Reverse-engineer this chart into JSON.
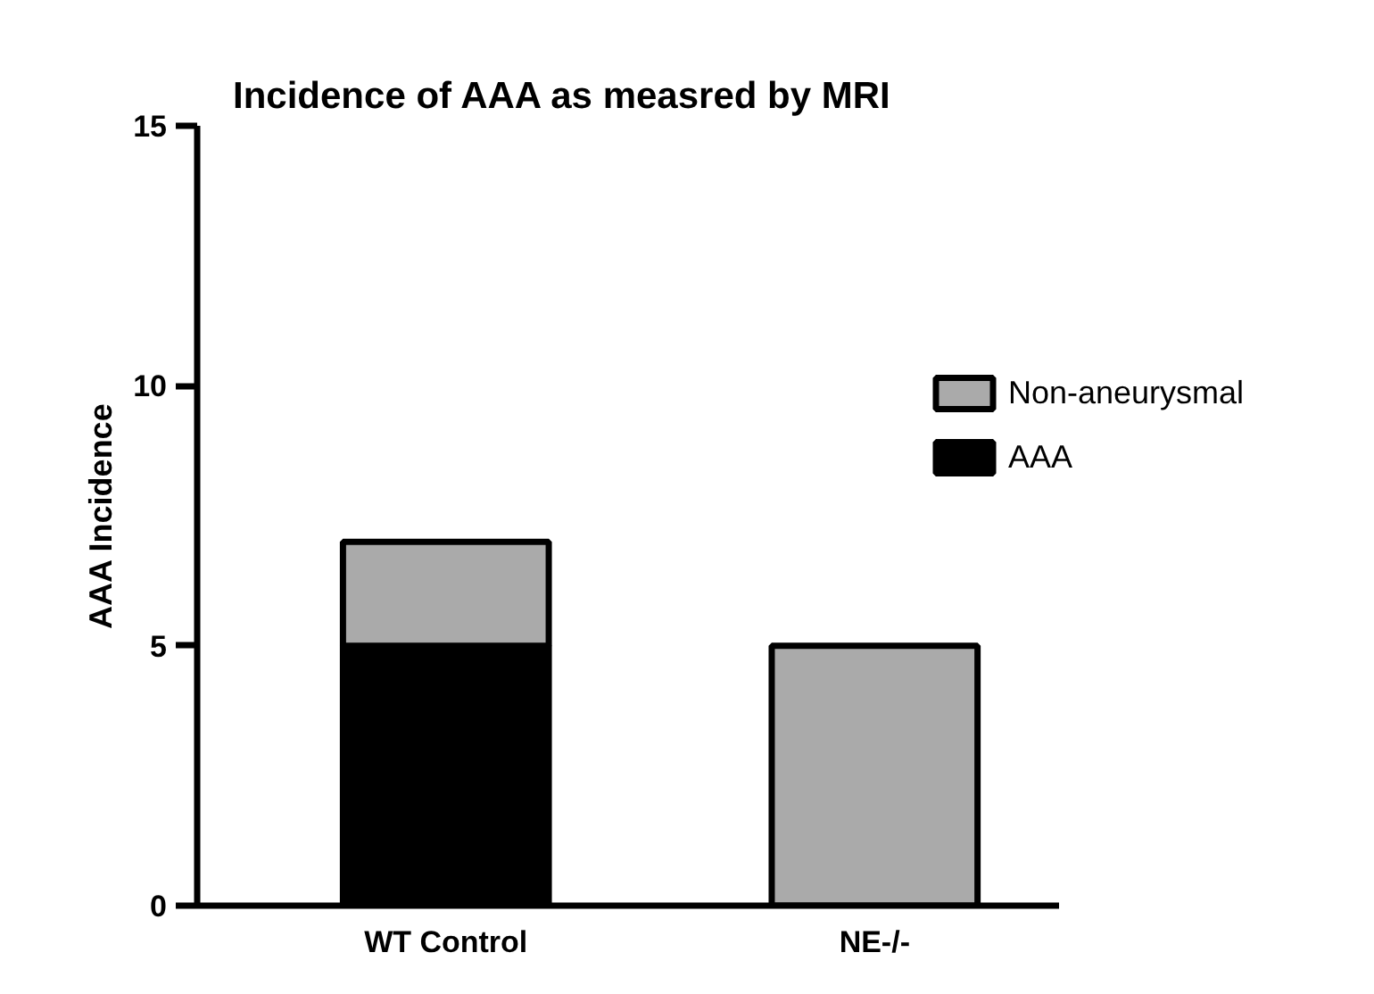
{
  "chart_data": {
    "type": "bar",
    "title": "Incidence of AAA as measred by MRI",
    "ylabel": "AAA Incidence",
    "categories": [
      "WT Control",
      "NE-/-"
    ],
    "stacked": true,
    "series": [
      {
        "name": "AAA",
        "color": "#000000",
        "values": [
          5,
          0
        ]
      },
      {
        "name": "Non-aneurysmal",
        "color": "#aaaaaa",
        "values": [
          2,
          5
        ]
      }
    ],
    "ylim": [
      0,
      15
    ],
    "yticks": [
      0,
      5,
      10,
      15
    ],
    "grid": false,
    "legend": "right"
  }
}
